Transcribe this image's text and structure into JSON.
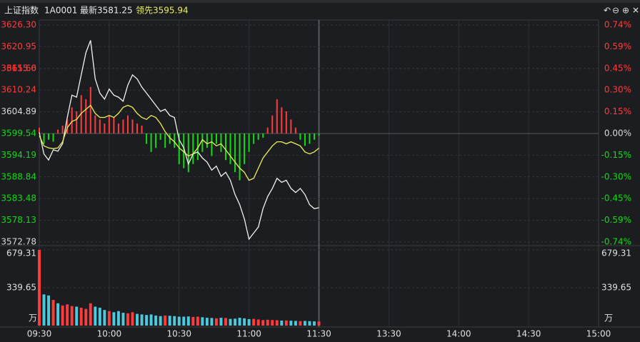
{
  "header": {
    "name": "上证指数",
    "code": "1A0001",
    "latest": "最新3581.25",
    "lead": "领先3595.94"
  },
  "chart_data": {
    "type": "line",
    "xlim": [
      0,
      240
    ],
    "xticks": [
      {
        "value": 0,
        "label": "09:30"
      },
      {
        "value": 30,
        "label": "10:00"
      },
      {
        "value": 60,
        "label": "10:30"
      },
      {
        "value": 90,
        "label": "11:00"
      },
      {
        "value": 120,
        "label": "11:30"
      },
      {
        "value": 150,
        "label": "13:30"
      },
      {
        "value": 180,
        "label": "14:00"
      },
      {
        "value": 210,
        "label": "14:30"
      },
      {
        "value": 240,
        "label": "15:00"
      }
    ],
    "ylim": [
      3572.78,
      3626.3
    ],
    "yticks": [
      {
        "value": 3626.3,
        "label": "3626.30"
      },
      3620.95,
      3615.6,
      {
        "value": 3615.6,
        "label": "3615.60"
      },
      3610.24,
      3604.89,
      3599.54,
      3594.19,
      3588.84,
      3583.48,
      3578.13,
      3572.78
    ],
    "y2lim": [
      -0.7434,
      0.7434
    ],
    "y2ticks": [
      {
        "value": 0.7434,
        "label": "0.74%"
      },
      {
        "value": 0.5948,
        "label": "0.59%"
      },
      {
        "value": 0.4462,
        "label": "0.45%"
      },
      {
        "value": 0.2973,
        "label": "0.30%"
      },
      {
        "value": 0.1486,
        "label": "0.15%"
      },
      {
        "value": 0,
        "label": "0.00%"
      },
      {
        "value": -0.1486,
        "label": "-0.15%"
      },
      {
        "value": -0.2973,
        "label": "-0.30%"
      },
      {
        "value": -0.4462,
        "label": "-0.45%"
      },
      {
        "value": -0.5948,
        "label": "-0.59%"
      },
      {
        "value": -0.7434,
        "label": "-0.74%"
      }
    ],
    "up_color": "#ff3b3b",
    "down_color": "#16d916",
    "flat_color": "#d8d8d8",
    "volume_color": "#4cc9dc",
    "grid": true,
    "x": [
      0,
      2,
      4,
      6,
      8,
      10,
      12,
      14,
      16,
      18,
      20,
      22,
      24,
      26,
      28,
      30,
      32,
      34,
      36,
      38,
      40,
      42,
      44,
      46,
      48,
      50,
      52,
      54,
      56,
      58,
      60,
      62,
      64,
      66,
      68,
      70,
      72,
      74,
      76,
      78,
      80,
      82,
      84,
      86,
      88,
      90,
      92,
      94,
      96,
      98,
      100,
      102,
      104,
      106,
      108,
      110,
      112,
      114,
      116,
      118,
      120
    ],
    "series": [
      {
        "color": "#f2f2f2",
        "values": [
          3599.8,
          3594.5,
          3593.0,
          3595.5,
          3595.2,
          3597.0,
          3603.5,
          3609.0,
          3608.5,
          3614.0,
          3619.5,
          3622.5,
          3613.0,
          3609.5,
          3608.0,
          3610.5,
          3609.0,
          3608.5,
          3607.5,
          3611.5,
          3614.0,
          3613.0,
          3611.0,
          3609.5,
          3608.0,
          3606.5,
          3605.0,
          3605.5,
          3604.0,
          3603.5,
          3598.0,
          3596.0,
          3592.0,
          3594.5,
          3595.0,
          3593.5,
          3592.5,
          3590.5,
          3591.5,
          3589.0,
          3590.0,
          3588.0,
          3584.5,
          3582.0,
          3578.5,
          3573.5,
          3575.0,
          3576.5,
          3581.0,
          3584.0,
          3586.0,
          3588.5,
          3587.5,
          3588.0,
          3586.0,
          3585.0,
          3586.0,
          3584.5,
          3582.0,
          3581.0,
          3581.25
        ]
      },
      {
        "color": "#eded5a",
        "values": [
          3599.0,
          3596.5,
          3596.0,
          3595.8,
          3596.0,
          3597.5,
          3601.0,
          3602.5,
          3603.0,
          3604.5,
          3605.5,
          3606.5,
          3604.5,
          3603.5,
          3603.5,
          3604.0,
          3603.5,
          3604.5,
          3606.0,
          3606.5,
          3606.0,
          3604.5,
          3603.5,
          3603.0,
          3604.0,
          3603.5,
          3602.0,
          3600.0,
          3598.5,
          3597.5,
          3596.0,
          3595.0,
          3594.0,
          3594.5,
          3596.0,
          3598.0,
          3597.0,
          3597.5,
          3596.5,
          3597.0,
          3595.5,
          3594.0,
          3592.5,
          3591.0,
          3590.0,
          3588.0,
          3588.5,
          3591.0,
          3593.5,
          3595.0,
          3596.5,
          3597.5,
          3597.5,
          3597.0,
          3597.5,
          3597.0,
          3596.5,
          3595.0,
          3594.5,
          3595.0,
          3595.94
        ]
      }
    ],
    "diff_bars": [
      3601,
      3597,
      3598,
      3597.5,
      3600.5,
      3601.5,
      3603,
      3606,
      3605,
      3609,
      3608,
      3611,
      3604,
      3603,
      3602,
      3604,
      3603.5,
      3602,
      3603,
      3604,
      3603,
      3602,
      3601.5,
      3597,
      3595,
      3596,
      3598,
      3596,
      3597,
      3596,
      3592,
      3591,
      3590,
      3592,
      3593,
      3595,
      3596,
      3594,
      3597,
      3595,
      3593,
      3592,
      3590,
      3588,
      3592,
      3595,
      3597,
      3598,
      3598.5,
      3601,
      3604,
      3608,
      3606,
      3605,
      3603,
      3601,
      3598,
      3596.5,
      3597,
      3598,
      3599
    ],
    "volume": {
      "ylim": [
        0,
        679.31
      ],
      "yticks": [
        339.65,
        679.31
      ],
      "unit": "万",
      "values": [
        679.31,
        280,
        270,
        230,
        200,
        180,
        190,
        175,
        170,
        160,
        150,
        200,
        170,
        160,
        140,
        130,
        120,
        130,
        115,
        110,
        120,
        105,
        100,
        95,
        100,
        90,
        85,
        90,
        88,
        85,
        80,
        80,
        82,
        78,
        80,
        75,
        70,
        68,
        65,
        70,
        68,
        60,
        62,
        70,
        65,
        58,
        60,
        55,
        50,
        52,
        50,
        48,
        45,
        46,
        44,
        42,
        40,
        42,
        40,
        38,
        36
      ]
    }
  }
}
